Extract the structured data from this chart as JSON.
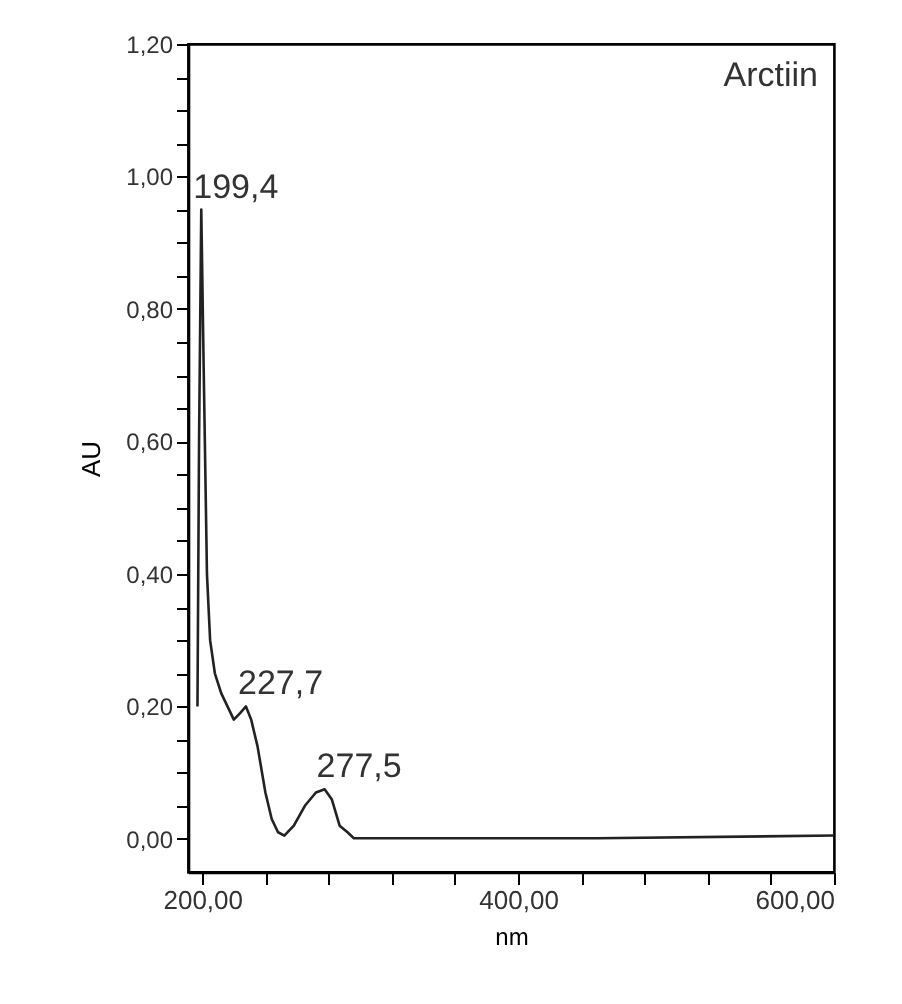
{
  "chart_data": {
    "type": "line",
    "xlabel": "nm",
    "ylabel": "AU",
    "x": [
      197,
      198,
      199.4,
      201,
      203,
      205,
      208,
      212,
      216,
      220,
      224,
      227.7,
      231,
      235,
      240,
      244,
      248,
      252,
      258,
      265,
      272,
      277.5,
      282,
      287,
      292,
      296,
      350,
      450,
      600
    ],
    "series": [
      {
        "color": "#222222",
        "values": [
          0.2,
          0.6,
          0.95,
          0.7,
          0.4,
          0.3,
          0.25,
          0.22,
          0.2,
          0.18,
          0.19,
          0.2,
          0.18,
          0.14,
          0.07,
          0.03,
          0.01,
          0.005,
          0.02,
          0.05,
          0.07,
          0.075,
          0.06,
          0.02,
          0.01,
          0.001,
          0.001,
          0.001,
          0.005
        ]
      }
    ],
    "xlim": [
      191,
      600
    ],
    "ylim": [
      -0.05,
      1.2
    ],
    "xticks": [
      {
        "value": 200,
        "label": "200,00"
      },
      {
        "value": 240,
        "label": null
      },
      {
        "value": 280,
        "label": null
      },
      {
        "value": 320,
        "label": null
      },
      {
        "value": 360,
        "label": null
      },
      {
        "value": 400,
        "label": "400,00"
      },
      {
        "value": 440,
        "label": null
      },
      {
        "value": 480,
        "label": null
      },
      {
        "value": 520,
        "label": null
      },
      {
        "value": 560,
        "label": null
      },
      {
        "value": 600,
        "label": "600,00"
      }
    ],
    "yticks": [
      {
        "value": 0,
        "label": "0,00"
      },
      {
        "value": 0.05,
        "label": null
      },
      {
        "value": 0.1,
        "label": null
      },
      {
        "value": 0.15,
        "label": null
      },
      {
        "value": 0.2,
        "label": "0,20"
      },
      {
        "value": 0.25,
        "label": null
      },
      {
        "value": 0.3,
        "label": null
      },
      {
        "value": 0.35,
        "label": null
      },
      {
        "value": 0.4,
        "label": "0,40"
      },
      {
        "value": 0.45,
        "label": null
      },
      {
        "value": 0.5,
        "label": null
      },
      {
        "value": 0.55,
        "label": null
      },
      {
        "value": 0.6,
        "label": "0,60"
      },
      {
        "value": 0.65,
        "label": null
      },
      {
        "value": 0.7,
        "label": null
      },
      {
        "value": 0.75,
        "label": null
      },
      {
        "value": 0.8,
        "label": "0,80"
      },
      {
        "value": 0.85,
        "label": null
      },
      {
        "value": 0.9,
        "label": null
      },
      {
        "value": 0.95,
        "label": null
      },
      {
        "value": 1.0,
        "label": "1,00"
      },
      {
        "value": 1.05,
        "label": null
      },
      {
        "value": 1.1,
        "label": null
      },
      {
        "value": 1.15,
        "label": null
      },
      {
        "value": 1.2,
        "label": "1,20"
      }
    ],
    "annotations": [
      "Arctiin",
      {
        "text": "199,4",
        "x": 199.4,
        "y": 0.95
      },
      {
        "text": "227,7",
        "x": 227.7,
        "y": 0.2
      },
      {
        "text": "277,5",
        "x": 277.5,
        "y": 0.075
      }
    ],
    "grid": false,
    "marker": "none",
    "line_style": "solid"
  }
}
